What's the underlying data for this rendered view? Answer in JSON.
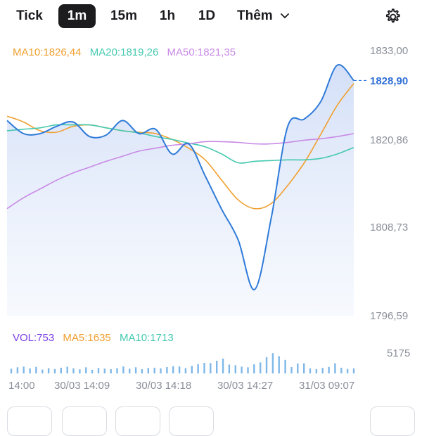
{
  "tabs": [
    {
      "label": "Tick",
      "active": false
    },
    {
      "label": "1m",
      "active": true
    },
    {
      "label": "15m",
      "active": false
    },
    {
      "label": "1h",
      "active": false
    },
    {
      "label": "1D",
      "active": false
    }
  ],
  "more_label": "Thêm",
  "colors": {
    "price": "#2f7bd8",
    "ma10": "#f0a030",
    "ma20": "#45c9b0",
    "ma50": "#c98ae6",
    "vol": "#7b3fe4",
    "bars": "#7fb8e8"
  },
  "legend": {
    "ma10": "MA10:1826,44",
    "ma20": "MA20:1819,26",
    "ma50": "MA50:1821,35"
  },
  "y_labels": [
    "1833,00",
    "1820,86",
    "1808,73",
    "1796,59"
  ],
  "last_price": "1828,90",
  "volume_legend": {
    "vol": "VOL:753",
    "ma5": "MA5:1635",
    "ma10": "MA10:1713"
  },
  "volume_max_label": "5175",
  "x_labels": [
    "14:00",
    "30/03 14:09",
    "30/03 14:18",
    "30/03 14:27",
    "31/03 09:07"
  ],
  "chart_data": {
    "type": "line",
    "ylim": [
      1796.59,
      1833.0
    ],
    "series": [
      {
        "name": "MA10",
        "values": [
          1824.0,
          1823.2,
          1822.0,
          1821.8,
          1822.6,
          1822.8,
          1822.4,
          1822.0,
          1821.8,
          1821.6,
          1820.8,
          1819.6,
          1818.0,
          1815.2,
          1812.5,
          1811.3,
          1812.0,
          1814.5,
          1817.6,
          1821.5,
          1825.5,
          1828.5
        ]
      },
      {
        "name": "MA20",
        "values": [
          1822.0,
          1822.2,
          1822.4,
          1822.8,
          1822.8,
          1822.8,
          1822.4,
          1822.0,
          1821.7,
          1821.2,
          1820.8,
          1820.3,
          1819.8,
          1818.8,
          1817.6,
          1817.8,
          1817.9,
          1818.0,
          1818.0,
          1818.2,
          1818.8,
          1819.7
        ]
      },
      {
        "name": "MA50",
        "values": [
          1811.3,
          1812.8,
          1814.0,
          1815.2,
          1816.2,
          1817.0,
          1817.8,
          1818.5,
          1819.2,
          1819.6,
          1820.0,
          1820.2,
          1820.5,
          1820.5,
          1820.4,
          1820.2,
          1820.2,
          1820.4,
          1820.7,
          1820.9,
          1821.2,
          1821.6
        ]
      },
      {
        "name": "Price",
        "values": [
          1823.4,
          1821.6,
          1821.6,
          1822.6,
          1823.2,
          1821.2,
          1821.4,
          1823.4,
          1821.6,
          1822.2,
          1818.8,
          1820.2,
          1815.8,
          1811.2,
          1807.0,
          1800.2,
          1810.0,
          1822.6,
          1823.6,
          1826.0,
          1831.0,
          1828.9
        ]
      }
    ],
    "volume": {
      "max": 5175,
      "values": [
        1100,
        1450,
        1600,
        1200,
        1550,
        900,
        1250,
        1050,
        1350,
        1600,
        1200,
        950,
        1450,
        850,
        1300,
        1150,
        1000,
        1250,
        1650,
        1100,
        1450,
        1000,
        1300,
        1350,
        1200,
        1500,
        1700,
        1650,
        1250,
        1800,
        2200,
        2500,
        2450,
        3000,
        3500,
        2100,
        1950,
        1600,
        1450,
        2150,
        2600,
        3850,
        4800,
        4100,
        3200,
        1500,
        2350,
        2400,
        1200,
        1000,
        1300,
        1550,
        2400,
        1350,
        1050,
        1200
      ]
    }
  }
}
